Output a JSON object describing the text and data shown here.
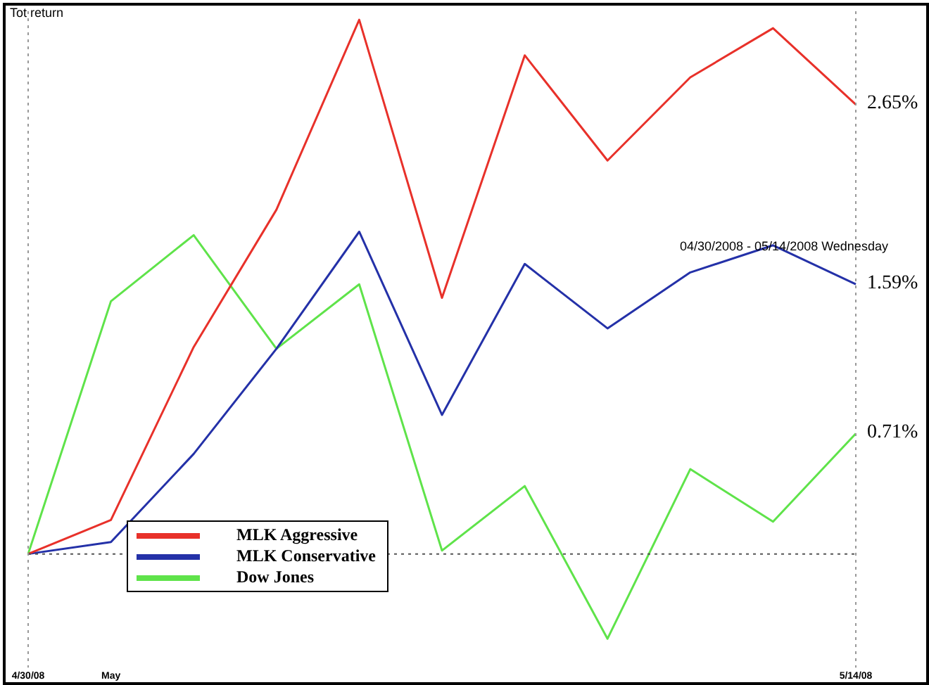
{
  "chart_data": {
    "type": "line",
    "ylabel": "Tot return",
    "categories": [
      "4/30/08",
      "May",
      null,
      null,
      null,
      null,
      null,
      null,
      null,
      null,
      "5/14/08"
    ],
    "series": [
      {
        "name": "MLK Aggressive",
        "color": "#e8312a",
        "values": [
          0,
          0.2,
          1.22,
          2.03,
          3.15,
          1.51,
          2.94,
          2.32,
          2.81,
          3.1,
          2.65
        ],
        "value_labels": [
          null,
          null,
          null,
          null,
          null,
          null,
          null,
          null,
          null,
          null,
          "2.65%"
        ]
      },
      {
        "name": "MLK Conservative",
        "color": "#2431a8",
        "values": [
          0,
          0.07,
          0.59,
          1.21,
          1.9,
          0.82,
          1.71,
          1.33,
          1.66,
          1.82,
          1.59
        ],
        "value_labels": [
          null,
          null,
          null,
          null,
          null,
          null,
          null,
          null,
          null,
          null,
          "1.59%"
        ]
      },
      {
        "name": "Dow Jones",
        "color": "#5fe34a",
        "values": [
          0,
          1.49,
          1.88,
          1.21,
          1.59,
          0.02,
          0.4,
          -0.5,
          0.5,
          0.19,
          0.71
        ],
        "value_labels": [
          null,
          null,
          null,
          null,
          null,
          null,
          null,
          null,
          null,
          null,
          "0.71%"
        ]
      }
    ],
    "ylim": [
      -0.67,
      3.2
    ],
    "tick_labels": "x",
    "grid": false,
    "legend": "bottom left",
    "marker": "none",
    "line_style": "solid",
    "ref_lines": [
      {
        "axis": "y",
        "value": 0,
        "line_style": "dotted",
        "color": "#555555"
      },
      {
        "axis": "x",
        "value": "4/30/08",
        "line_style": "dotted",
        "color": "#999999"
      },
      {
        "axis": "x",
        "value": "5/14/08",
        "line_style": "dotted",
        "color": "#999999"
      }
    ],
    "annotations": [
      "04/30/2008 - 05/14/2008 Wednesday"
    ]
  }
}
